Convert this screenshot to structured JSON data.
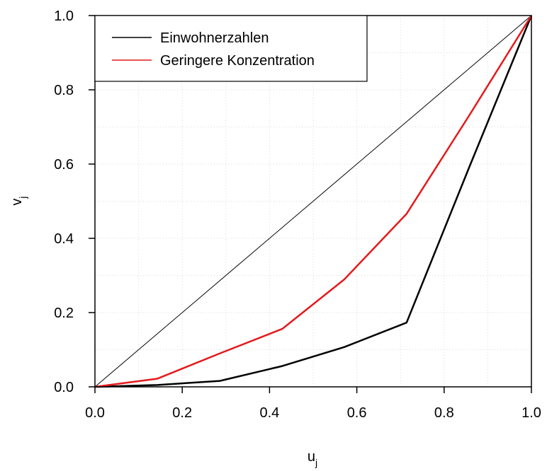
{
  "chart_data": {
    "type": "line",
    "title": "",
    "xlabel": "u",
    "xlabel_sub": "j",
    "ylabel": "v",
    "ylabel_sub": "j",
    "xlim": [
      0,
      1
    ],
    "ylim": [
      0,
      1
    ],
    "x_ticks": [
      "0.0",
      "0.2",
      "0.4",
      "0.6",
      "0.8",
      "1.0"
    ],
    "y_ticks": [
      "0.0",
      "0.2",
      "0.4",
      "0.6",
      "0.8",
      "1.0"
    ],
    "grid": true,
    "legend_position": "top-left",
    "reference_line": {
      "x": [
        0,
        1
      ],
      "y": [
        0,
        1
      ],
      "color": "#000000"
    },
    "series": [
      {
        "name": "Einwohnerzahlen",
        "color": "#000000",
        "x": [
          0,
          0.143,
          0.286,
          0.429,
          0.571,
          0.714,
          0.857,
          1.0
        ],
        "y": [
          0,
          0.005,
          0.016,
          0.056,
          0.107,
          0.173,
          0.59,
          1.0
        ]
      },
      {
        "name": "Geringere Konzentration",
        "color": "#e41a1c",
        "x": [
          0,
          0.143,
          0.286,
          0.429,
          0.571,
          0.714,
          0.857,
          1.0
        ],
        "y": [
          0,
          0.022,
          0.09,
          0.156,
          0.289,
          0.466,
          0.73,
          1.0
        ]
      }
    ]
  }
}
